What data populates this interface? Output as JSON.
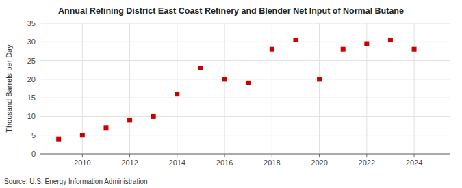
{
  "chart_data": {
    "type": "scatter",
    "title": "Annual Refining District East Coast Refinery and Blender Net Input of Normal Butane",
    "ylabel": "Thousand Barrels per Day",
    "annotations": [
      "Source: U.S. Energy Information Administration"
    ],
    "x": [
      2009,
      2010,
      2011,
      2012,
      2013,
      2014,
      2015,
      2016,
      2017,
      2018,
      2019,
      2020,
      2021,
      2022,
      2023,
      2024
    ],
    "values": [
      4.0,
      5.0,
      7.0,
      9.0,
      10.0,
      16.0,
      23.0,
      20.0,
      19.0,
      28.0,
      30.5,
      20.0,
      28.0,
      29.5,
      30.5,
      28.0
    ],
    "color": "#cc0000",
    "marker": "square",
    "xlim": [
      2008.2,
      2025.5
    ],
    "ylim": [
      0,
      35
    ],
    "xticks": [
      2010,
      2012,
      2014,
      2016,
      2018,
      2020,
      2022,
      2024
    ],
    "yticks": [
      0,
      5,
      10,
      15,
      20,
      25,
      30,
      35
    ],
    "grid": true
  }
}
